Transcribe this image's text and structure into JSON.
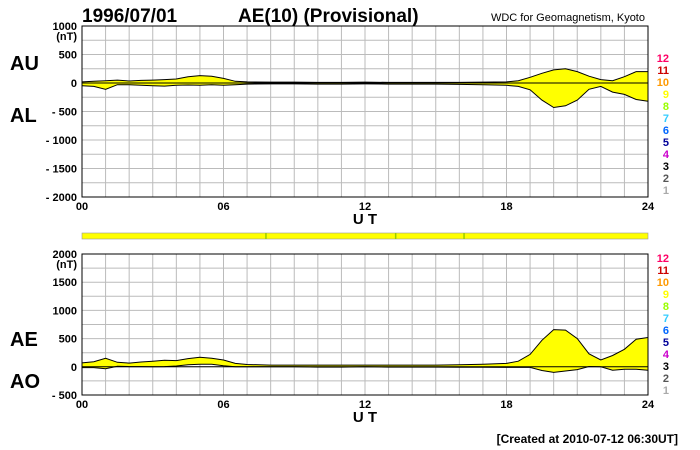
{
  "header": {
    "date": "1996/07/01",
    "title": "AE(10) (Provisional)",
    "source": "WDC for Geomagnetism, Kyoto"
  },
  "footer": {
    "created": "[Created at 2010-07-12 06:30UT]"
  },
  "station_scale": {
    "numbers": [
      "12",
      "11",
      "10",
      "9",
      "8",
      "7",
      "6",
      "5",
      "4",
      "3",
      "2",
      "1"
    ],
    "colors": [
      "#ff0066",
      "#cc0000",
      "#ff9900",
      "#ffff00",
      "#99ff00",
      "#33ccff",
      "#0066ff",
      "#000099",
      "#cc00cc",
      "#000000",
      "#555555",
      "#aaaaaa"
    ]
  },
  "coverage_bar": {
    "color": "#ffff00",
    "tick_hours": [
      7.8,
      13.3,
      16.2
    ],
    "tick_color": "#99cc00"
  },
  "chart_data": [
    {
      "type": "area",
      "upper_label": "AU",
      "lower_label": "AL",
      "unit": "(nT)",
      "xlabel": "U T",
      "xlim": [
        0,
        24
      ],
      "x_ticks": [
        0,
        6,
        12,
        18,
        24
      ],
      "x_tick_labels": [
        "00",
        "06",
        "12",
        "18",
        "24"
      ],
      "ylim": [
        -2000,
        1000
      ],
      "y_ticks": [
        1000,
        500,
        0,
        -500,
        -1000,
        -1500,
        -2000
      ],
      "y_tick_labels": [
        "1000",
        "500",
        "0",
        "- 500",
        "- 1000",
        "- 1500",
        "- 2000"
      ],
      "grid": true,
      "fill_color": "#ffff00",
      "series": [
        {
          "name": "AU",
          "x": [
            0,
            0.5,
            1,
            1.5,
            2,
            2.5,
            3,
            3.5,
            4,
            4.5,
            5,
            5.5,
            6,
            6.5,
            7,
            8,
            9,
            10,
            11,
            12,
            13,
            14,
            15,
            16,
            17,
            18,
            18.5,
            19,
            19.5,
            20,
            20.5,
            21,
            21.5,
            22,
            22.5,
            23,
            23.5,
            24
          ],
          "values": [
            20,
            30,
            40,
            50,
            35,
            45,
            50,
            60,
            70,
            110,
            130,
            120,
            80,
            30,
            20,
            15,
            15,
            10,
            10,
            15,
            10,
            10,
            10,
            10,
            15,
            20,
            40,
            100,
            170,
            230,
            250,
            200,
            120,
            60,
            40,
            110,
            200,
            200
          ]
        },
        {
          "name": "AL",
          "x": [
            0,
            0.5,
            1,
            1.5,
            2,
            2.5,
            3,
            3.5,
            4,
            4.5,
            5,
            5.5,
            6,
            6.5,
            7,
            8,
            9,
            10,
            11,
            12,
            13,
            14,
            15,
            16,
            17,
            18,
            18.5,
            19,
            19.5,
            20,
            20.5,
            21,
            21.5,
            22,
            22.5,
            23,
            23.5,
            24
          ],
          "values": [
            -50,
            -60,
            -110,
            -30,
            -30,
            -40,
            -50,
            -55,
            -40,
            -35,
            -40,
            -30,
            -40,
            -30,
            -20,
            -15,
            -15,
            -20,
            -20,
            -15,
            -20,
            -20,
            -20,
            -25,
            -30,
            -40,
            -60,
            -120,
            -300,
            -430,
            -400,
            -300,
            -110,
            -60,
            -160,
            -200,
            -290,
            -320
          ]
        }
      ]
    },
    {
      "type": "area",
      "upper_label": "AE",
      "lower_label": "AO",
      "unit": "(nT)",
      "xlabel": "U T",
      "xlim": [
        0,
        24
      ],
      "x_ticks": [
        0,
        6,
        12,
        18,
        24
      ],
      "x_tick_labels": [
        "00",
        "06",
        "12",
        "18",
        "24"
      ],
      "ylim": [
        -500,
        2000
      ],
      "y_ticks": [
        2000,
        1500,
        1000,
        500,
        0,
        -500
      ],
      "y_tick_labels": [
        "2000",
        "1500",
        "1000",
        "500",
        "0",
        "- 500"
      ],
      "grid": true,
      "fill_color": "#ffff00",
      "series": [
        {
          "name": "AE",
          "x": [
            0,
            0.5,
            1,
            1.5,
            2,
            2.5,
            3,
            3.5,
            4,
            4.5,
            5,
            5.5,
            6,
            6.5,
            7,
            8,
            9,
            10,
            11,
            12,
            13,
            14,
            15,
            16,
            17,
            18,
            18.5,
            19,
            19.5,
            20,
            20.5,
            21,
            21.5,
            22,
            22.5,
            23,
            23.5,
            24
          ],
          "values": [
            70,
            90,
            150,
            80,
            65,
            85,
            100,
            115,
            110,
            145,
            170,
            150,
            120,
            60,
            40,
            30,
            30,
            30,
            30,
            30,
            30,
            30,
            30,
            35,
            45,
            60,
            100,
            220,
            470,
            660,
            650,
            500,
            230,
            120,
            200,
            310,
            490,
            520
          ]
        },
        {
          "name": "AO",
          "x": [
            0,
            0.5,
            1,
            1.5,
            2,
            2.5,
            3,
            3.5,
            4,
            4.5,
            5,
            5.5,
            6,
            6.5,
            7,
            8,
            9,
            10,
            11,
            12,
            13,
            14,
            15,
            16,
            17,
            18,
            18.5,
            19,
            19.5,
            20,
            20.5,
            21,
            21.5,
            22,
            22.5,
            23,
            23.5,
            24
          ],
          "values": [
            -15,
            -15,
            -35,
            10,
            3,
            3,
            0,
            3,
            15,
            38,
            45,
            45,
            20,
            0,
            0,
            0,
            0,
            -5,
            -5,
            0,
            -5,
            -5,
            -5,
            -8,
            -8,
            -10,
            -10,
            -10,
            -65,
            -100,
            -75,
            -50,
            5,
            0,
            -60,
            -45,
            -45,
            -60
          ]
        }
      ]
    }
  ]
}
